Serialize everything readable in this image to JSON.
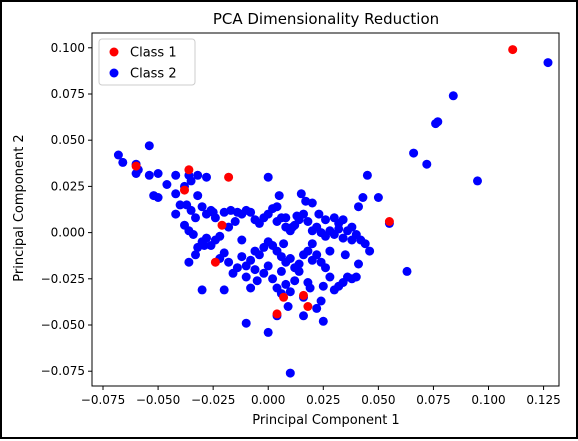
{
  "chart_data": {
    "type": "scatter",
    "title": "PCA Dimensionality Reduction",
    "xlabel": "Principal Component 1",
    "ylabel": "Principal Component 2",
    "xlim": [
      -0.08,
      0.132
    ],
    "ylim": [
      -0.083,
      0.108
    ],
    "xticks": [
      -0.075,
      -0.05,
      -0.025,
      0.0,
      0.025,
      0.05,
      0.075,
      0.1,
      0.125
    ],
    "xtick_labels": [
      "−0.075",
      "−0.050",
      "−0.025",
      "0.000",
      "0.025",
      "0.050",
      "0.075",
      "0.100",
      "0.125"
    ],
    "yticks": [
      -0.075,
      -0.05,
      -0.025,
      0.0,
      0.025,
      0.05,
      0.075,
      0.1
    ],
    "ytick_labels": [
      "−0.075",
      "−0.050",
      "−0.025",
      "0.000",
      "0.025",
      "0.050",
      "0.075",
      "0.100"
    ],
    "grid": false,
    "legend_position": "top-left",
    "series": [
      {
        "name": "Class 2",
        "color": "#0000ff",
        "points": [
          [
            -0.068,
            0.042
          ],
          [
            -0.066,
            0.038
          ],
          [
            -0.06,
            0.037
          ],
          [
            -0.059,
            0.034
          ],
          [
            -0.06,
            0.032
          ],
          [
            -0.054,
            0.047
          ],
          [
            -0.054,
            0.031
          ],
          [
            -0.05,
            0.032
          ],
          [
            -0.052,
            0.02
          ],
          [
            -0.05,
            0.019
          ],
          [
            -0.046,
            0.026
          ],
          [
            -0.042,
            0.031
          ],
          [
            -0.042,
            0.021
          ],
          [
            -0.038,
            0.025
          ],
          [
            -0.036,
            0.031
          ],
          [
            -0.035,
            0.028
          ],
          [
            -0.032,
            0.031
          ],
          [
            -0.028,
            0.03
          ],
          [
            -0.04,
            0.015
          ],
          [
            -0.042,
            0.01
          ],
          [
            -0.037,
            0.015
          ],
          [
            -0.035,
            0.012
          ],
          [
            -0.032,
            0.02
          ],
          [
            -0.033,
            0.008
          ],
          [
            -0.03,
            0.014
          ],
          [
            -0.028,
            0.01
          ],
          [
            -0.025,
            0.011
          ],
          [
            -0.024,
            0.008
          ],
          [
            -0.02,
            0.011
          ],
          [
            -0.017,
            0.012
          ],
          [
            -0.014,
            0.011
          ],
          [
            -0.012,
            0.01
          ],
          [
            -0.01,
            0.012
          ],
          [
            -0.008,
            0.011
          ],
          [
            -0.006,
            0.007
          ],
          [
            -0.004,
            0.005
          ],
          [
            -0.002,
            0.008
          ],
          [
            0.0,
            0.01
          ],
          [
            0.002,
            0.013
          ],
          [
            0.004,
            0.006
          ],
          [
            0.006,
            0.008
          ],
          [
            0.008,
            0.003
          ],
          [
            0.01,
            0.001
          ],
          [
            0.012,
            0.004
          ],
          [
            0.014,
            0.007
          ],
          [
            0.016,
            0.01
          ],
          [
            0.018,
            0.006
          ],
          [
            0.02,
            0.001
          ],
          [
            0.022,
            0.003
          ],
          [
            0.024,
            0.0
          ],
          [
            0.026,
            -0.002
          ],
          [
            0.028,
            0.001
          ],
          [
            0.03,
            -0.001
          ],
          [
            0.032,
            0.002
          ],
          [
            0.034,
            -0.003
          ],
          [
            0.036,
            0.001
          ],
          [
            0.038,
            -0.004
          ],
          [
            0.04,
            -0.001
          ],
          [
            0.042,
            -0.004
          ],
          [
            0.044,
            -0.006
          ],
          [
            0.046,
            -0.01
          ],
          [
            0.041,
            -0.017
          ],
          [
            0.04,
            -0.024
          ],
          [
            0.038,
            -0.025
          ],
          [
            0.036,
            -0.024
          ],
          [
            0.034,
            -0.027
          ],
          [
            0.032,
            -0.029
          ],
          [
            0.03,
            -0.031
          ],
          [
            0.028,
            -0.024
          ],
          [
            0.026,
            -0.019
          ],
          [
            0.024,
            -0.016
          ],
          [
            0.022,
            -0.012
          ],
          [
            0.02,
            -0.015
          ],
          [
            0.018,
            -0.01
          ],
          [
            0.016,
            -0.012
          ],
          [
            0.014,
            -0.017
          ],
          [
            0.012,
            -0.019
          ],
          [
            0.01,
            -0.014
          ],
          [
            0.008,
            -0.016
          ],
          [
            0.006,
            -0.013
          ],
          [
            0.004,
            -0.01
          ],
          [
            0.002,
            -0.007
          ],
          [
            0.0,
            -0.005
          ],
          [
            -0.002,
            -0.008
          ],
          [
            -0.004,
            -0.012
          ],
          [
            -0.006,
            -0.01
          ],
          [
            -0.008,
            -0.015
          ],
          [
            -0.01,
            -0.018
          ],
          [
            -0.012,
            -0.013
          ],
          [
            -0.014,
            -0.019
          ],
          [
            -0.016,
            -0.022
          ],
          [
            -0.018,
            -0.016
          ],
          [
            -0.02,
            -0.011
          ],
          [
            -0.022,
            -0.014
          ],
          [
            -0.024,
            -0.004
          ],
          [
            -0.026,
            -0.007
          ],
          [
            -0.028,
            -0.003
          ],
          [
            -0.03,
            -0.005
          ],
          [
            -0.032,
            -0.008
          ],
          [
            -0.034,
            -0.001
          ],
          [
            -0.036,
            0.001
          ],
          [
            -0.038,
            0.004
          ],
          [
            -0.033,
            -0.012
          ],
          [
            -0.029,
            -0.007
          ],
          [
            -0.036,
            -0.016
          ],
          [
            -0.03,
            -0.031
          ],
          [
            -0.02,
            -0.031
          ],
          [
            -0.01,
            -0.024
          ],
          [
            -0.008,
            -0.03
          ],
          [
            -0.005,
            -0.026
          ],
          [
            -0.002,
            -0.022
          ],
          [
            0.0,
            -0.018
          ],
          [
            0.002,
            -0.025
          ],
          [
            0.004,
            -0.03
          ],
          [
            0.006,
            -0.033
          ],
          [
            0.008,
            -0.028
          ],
          [
            0.01,
            -0.032
          ],
          [
            0.012,
            -0.026
          ],
          [
            0.014,
            -0.021
          ],
          [
            0.018,
            -0.027
          ],
          [
            0.016,
            -0.035
          ],
          [
            0.019,
            -0.03
          ],
          [
            0.024,
            -0.037
          ],
          [
            0.025,
            -0.029
          ],
          [
            0.022,
            -0.041
          ],
          [
            0.025,
            -0.048
          ],
          [
            0.016,
            -0.045
          ],
          [
            0.009,
            -0.04
          ],
          [
            0.004,
            -0.045
          ],
          [
            0.0,
            -0.054
          ],
          [
            -0.01,
            -0.049
          ],
          [
            0.01,
            -0.076
          ],
          [
            0.0,
            0.03
          ],
          [
            0.004,
            0.014
          ],
          [
            0.008,
            0.008
          ],
          [
            0.015,
            0.021
          ],
          [
            0.017,
            0.017
          ],
          [
            0.02,
            0.016
          ],
          [
            0.023,
            0.01
          ],
          [
            0.026,
            0.007
          ],
          [
            0.03,
            0.008
          ],
          [
            0.032,
            0.005
          ],
          [
            0.034,
            0.007
          ],
          [
            0.038,
            0.003
          ],
          [
            0.041,
            0.014
          ],
          [
            0.043,
            0.019
          ],
          [
            0.045,
            0.031
          ],
          [
            0.05,
            0.019
          ],
          [
            0.055,
            0.005
          ],
          [
            0.063,
            -0.021
          ],
          [
            0.066,
            0.043
          ],
          [
            0.072,
            0.037
          ],
          [
            0.076,
            0.059
          ],
          [
            0.077,
            0.06
          ],
          [
            0.084,
            0.074
          ],
          [
            0.095,
            0.028
          ],
          [
            0.127,
            0.092
          ],
          [
            0.005,
            0.02
          ],
          [
            -0.015,
            0.006
          ],
          [
            -0.022,
            -0.002
          ],
          [
            0.011,
            0.003
          ],
          [
            0.013,
            0.009
          ],
          [
            -0.018,
            0.003
          ],
          [
            0.007,
            -0.006
          ],
          [
            -0.026,
            0.012
          ],
          [
            0.02,
            -0.006
          ],
          [
            -0.012,
            -0.004
          ],
          [
            0.028,
            -0.01
          ],
          [
            0.035,
            -0.012
          ],
          [
            -0.006,
            -0.02
          ],
          [
            0.006,
            -0.021
          ]
        ]
      },
      {
        "name": "Class 1",
        "color": "#ff0000",
        "points": [
          [
            -0.06,
            0.036
          ],
          [
            -0.036,
            0.034
          ],
          [
            -0.038,
            0.023
          ],
          [
            -0.018,
            0.03
          ],
          [
            -0.021,
            0.004
          ],
          [
            -0.024,
            -0.016
          ],
          [
            0.004,
            -0.044
          ],
          [
            0.007,
            -0.035
          ],
          [
            0.016,
            -0.034
          ],
          [
            0.018,
            -0.04
          ],
          [
            0.055,
            0.006
          ],
          [
            0.111,
            0.099
          ]
        ]
      }
    ],
    "legend": [
      {
        "name": "Class 1",
        "color": "#ff0000"
      },
      {
        "name": "Class 2",
        "color": "#0000ff"
      }
    ]
  }
}
